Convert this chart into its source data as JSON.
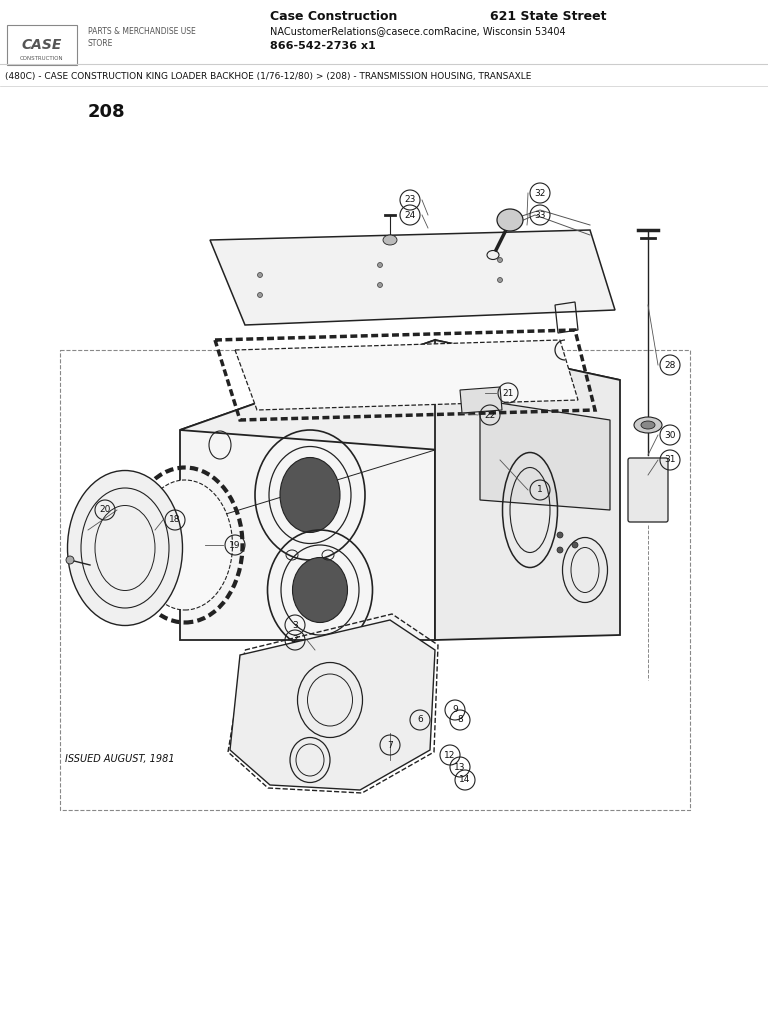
{
  "title_company": "Case Construction",
  "title_address1": "621 State Street",
  "title_address2": "NACustomerRelations@casece.comRacine, Wisconsin 53404",
  "title_phone": "866-542-2736 x1",
  "breadcrumb": "(480C) - CASE CONSTRUCTION KING LOADER BACKHOE (1/76-12/80) > (208) - TRANSMISSION HOUSING, TRANSAXLE",
  "diagram_number": "208",
  "issued_text": "ISSUED AUGUST, 1981",
  "bg_color": "#ffffff",
  "line_color": "#222222",
  "text_color": "#111111"
}
